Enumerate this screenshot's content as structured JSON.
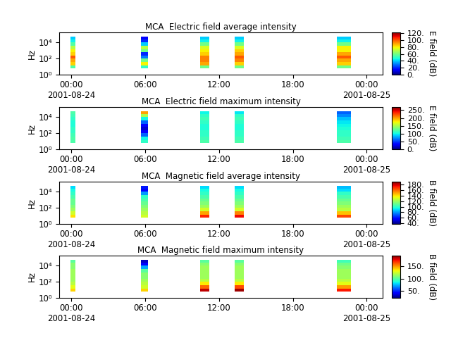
{
  "chart_data": [
    {
      "type": "heatmap",
      "title": "MCA  Electric field average intensity",
      "ylabel": "Hz",
      "log": "y",
      "xlim": [
        -1.0,
        25.3
      ],
      "xticks": [
        {
          "value": 0,
          "label": "00:00\n2001-08-24"
        },
        {
          "value": 6,
          "label": "06:00"
        },
        {
          "value": 12,
          "label": "12:00"
        },
        {
          "value": 18,
          "label": "18:00"
        },
        {
          "value": 24,
          "label": "00:00\n2001-08-25"
        }
      ],
      "ylim": [
        1,
        150000
      ],
      "yticks": [
        {
          "value": 1,
          "label": "10⁰"
        },
        {
          "value": 100,
          "label": "10²"
        },
        {
          "value": 10000,
          "label": "10⁴"
        }
      ],
      "freq_edges": [
        6,
        14,
        35,
        90,
        220,
        560,
        1400,
        3500,
        9000,
        22000,
        45000
      ],
      "blocks": [
        {
          "start": -0.11,
          "end": 0.34,
          "values": [
            55,
            85,
            90,
            100,
            85,
            80,
            70,
            55,
            45,
            40
          ]
        },
        {
          "start": 5.63,
          "end": 6.2,
          "values": [
            50,
            80,
            60,
            30,
            20,
            60,
            70,
            40,
            20,
            15
          ]
        },
        {
          "start": 10.45,
          "end": 11.2,
          "values": [
            60,
            90,
            95,
            95,
            85,
            80,
            75,
            60,
            45,
            40
          ]
        },
        {
          "start": 13.26,
          "end": 14.0,
          "values": [
            60,
            85,
            95,
            100,
            90,
            85,
            75,
            60,
            45,
            40
          ]
        },
        {
          "start": 21.6,
          "end": 22.7,
          "values": [
            60,
            85,
            90,
            100,
            90,
            80,
            80,
            60,
            45,
            40
          ]
        }
      ],
      "colorbar": {
        "label": "E field (dB)",
        "lim": [
          0,
          123
        ],
        "ticks": [
          {
            "value": 0,
            "label": "0."
          },
          {
            "value": 20,
            "label": "20."
          },
          {
            "value": 40,
            "label": "40."
          },
          {
            "value": 60,
            "label": "60."
          },
          {
            "value": 80,
            "label": "80."
          },
          {
            "value": 100,
            "label": "100."
          },
          {
            "value": 120,
            "label": "120."
          }
        ]
      }
    },
    {
      "type": "heatmap",
      "title": "MCA  Electric field maximum intensity",
      "ylabel": "Hz",
      "log": "y",
      "xlim": [
        -1.0,
        25.3
      ],
      "xticks": [
        {
          "value": 0,
          "label": "00:00\n2001-08-24"
        },
        {
          "value": 6,
          "label": "06:00"
        },
        {
          "value": 12,
          "label": "12:00"
        },
        {
          "value": 18,
          "label": "18:00"
        },
        {
          "value": 24,
          "label": "00:00\n2001-08-25"
        }
      ],
      "ylim": [
        1,
        150000
      ],
      "yticks": [
        {
          "value": 1,
          "label": "10⁰"
        },
        {
          "value": 100,
          "label": "10²"
        },
        {
          "value": 10000,
          "label": "10⁴"
        }
      ],
      "freq_edges": [
        6,
        14,
        35,
        90,
        220,
        560,
        1400,
        3500,
        9000,
        22000,
        45000
      ],
      "blocks": [
        {
          "start": -0.11,
          "end": 0.34,
          "values": [
            120,
            120,
            115,
            110,
            110,
            105,
            105,
            110,
            115,
            120
          ]
        },
        {
          "start": 5.63,
          "end": 6.2,
          "values": [
            110,
            100,
            60,
            30,
            20,
            30,
            60,
            100,
            150,
            200
          ]
        },
        {
          "start": 10.45,
          "end": 11.2,
          "values": [
            120,
            115,
            110,
            110,
            105,
            105,
            110,
            115,
            110,
            100
          ]
        },
        {
          "start": 13.26,
          "end": 14.0,
          "values": [
            120,
            115,
            110,
            110,
            105,
            105,
            110,
            115,
            110,
            95
          ]
        },
        {
          "start": 21.6,
          "end": 22.7,
          "values": [
            120,
            115,
            110,
            110,
            105,
            100,
            95,
            85,
            70,
            60
          ]
        }
      ],
      "colorbar": {
        "label": "E field (dB)",
        "lim": [
          0,
          270
        ],
        "ticks": [
          {
            "value": 0,
            "label": "0."
          },
          {
            "value": 50,
            "label": "50."
          },
          {
            "value": 100,
            "label": "100."
          },
          {
            "value": 150,
            "label": "150."
          },
          {
            "value": 200,
            "label": "200."
          },
          {
            "value": 250,
            "label": "250."
          }
        ]
      }
    },
    {
      "type": "heatmap",
      "title": "MCA  Magnetic field average intensity",
      "ylabel": "Hz",
      "log": "y",
      "xlim": [
        -1.0,
        25.3
      ],
      "xticks": [
        {
          "value": 0,
          "label": "00:00\n2001-08-24"
        },
        {
          "value": 6,
          "label": "06:00"
        },
        {
          "value": 12,
          "label": "12:00"
        },
        {
          "value": 18,
          "label": "18:00"
        },
        {
          "value": 24,
          "label": "00:00\n2001-08-25"
        }
      ],
      "ylim": [
        1,
        150000
      ],
      "yticks": [
        {
          "value": 1,
          "label": "10⁰"
        },
        {
          "value": 100,
          "label": "10²"
        },
        {
          "value": 10000,
          "label": "10⁴"
        }
      ],
      "freq_edges": [
        6,
        14,
        35,
        90,
        220,
        560,
        1400,
        3500,
        9000,
        22000,
        45000
      ],
      "blocks": [
        {
          "start": -0.11,
          "end": 0.34,
          "values": [
            140,
            130,
            120,
            115,
            110,
            110,
            105,
            100,
            95,
            90
          ]
        },
        {
          "start": 5.63,
          "end": 6.2,
          "values": [
            130,
            125,
            120,
            115,
            110,
            105,
            100,
            80,
            55,
            60
          ]
        },
        {
          "start": 10.45,
          "end": 11.2,
          "values": [
            170,
            150,
            130,
            120,
            115,
            110,
            105,
            100,
            95,
            90
          ]
        },
        {
          "start": 13.26,
          "end": 14.0,
          "values": [
            175,
            155,
            130,
            120,
            115,
            110,
            105,
            100,
            95,
            90
          ]
        },
        {
          "start": 21.6,
          "end": 22.7,
          "values": [
            165,
            145,
            125,
            120,
            115,
            110,
            105,
            100,
            90,
            85
          ]
        }
      ],
      "colorbar": {
        "label": "B field (dB)",
        "lim": [
          38,
          190
        ],
        "ticks": [
          {
            "value": 40,
            "label": "40."
          },
          {
            "value": 60,
            "label": "60."
          },
          {
            "value": 80,
            "label": "80."
          },
          {
            "value": 100,
            "label": "100."
          },
          {
            "value": 120,
            "label": "120."
          },
          {
            "value": 140,
            "label": "140."
          },
          {
            "value": 160,
            "label": "160."
          },
          {
            "value": 180,
            "label": "180."
          }
        ]
      }
    },
    {
      "type": "heatmap",
      "title": "MCA  Magnetic field maximum intensity",
      "ylabel": "Hz",
      "log": "y",
      "xlim": [
        -1.0,
        25.3
      ],
      "xticks": [
        {
          "value": 0,
          "label": "00:00\n2001-08-24"
        },
        {
          "value": 6,
          "label": "06:00"
        },
        {
          "value": 12,
          "label": "12:00"
        },
        {
          "value": 18,
          "label": "18:00"
        },
        {
          "value": 24,
          "label": "00:00\n2001-08-25"
        }
      ],
      "ylim": [
        1,
        150000
      ],
      "yticks": [
        {
          "value": 1,
          "label": "10⁰"
        },
        {
          "value": 100,
          "label": "10²"
        },
        {
          "value": 10000,
          "label": "10⁴"
        }
      ],
      "freq_edges": [
        6,
        14,
        35,
        90,
        220,
        560,
        1400,
        3500,
        9000,
        22000,
        45000
      ],
      "blocks": [
        {
          "start": -0.11,
          "end": 0.34,
          "values": [
            140,
            130,
            120,
            115,
            115,
            115,
            115,
            110,
            110,
            100
          ]
        },
        {
          "start": 5.63,
          "end": 6.2,
          "values": [
            140,
            125,
            120,
            115,
            110,
            110,
            100,
            70,
            40,
            30
          ]
        },
        {
          "start": 10.45,
          "end": 11.2,
          "values": [
            185,
            160,
            135,
            120,
            115,
            115,
            115,
            115,
            110,
            100
          ]
        },
        {
          "start": 13.26,
          "end": 14.0,
          "values": [
            190,
            165,
            135,
            120,
            115,
            115,
            115,
            115,
            110,
            100
          ]
        },
        {
          "start": 21.6,
          "end": 22.7,
          "values": [
            175,
            150,
            130,
            120,
            115,
            115,
            115,
            110,
            105,
            95
          ]
        }
      ],
      "colorbar": {
        "label": "B field (dB)",
        "lim": [
          20,
          195
        ],
        "ticks": [
          {
            "value": 50,
            "label": "50."
          },
          {
            "value": 100,
            "label": "100."
          },
          {
            "value": 150,
            "label": "150."
          }
        ]
      }
    }
  ]
}
